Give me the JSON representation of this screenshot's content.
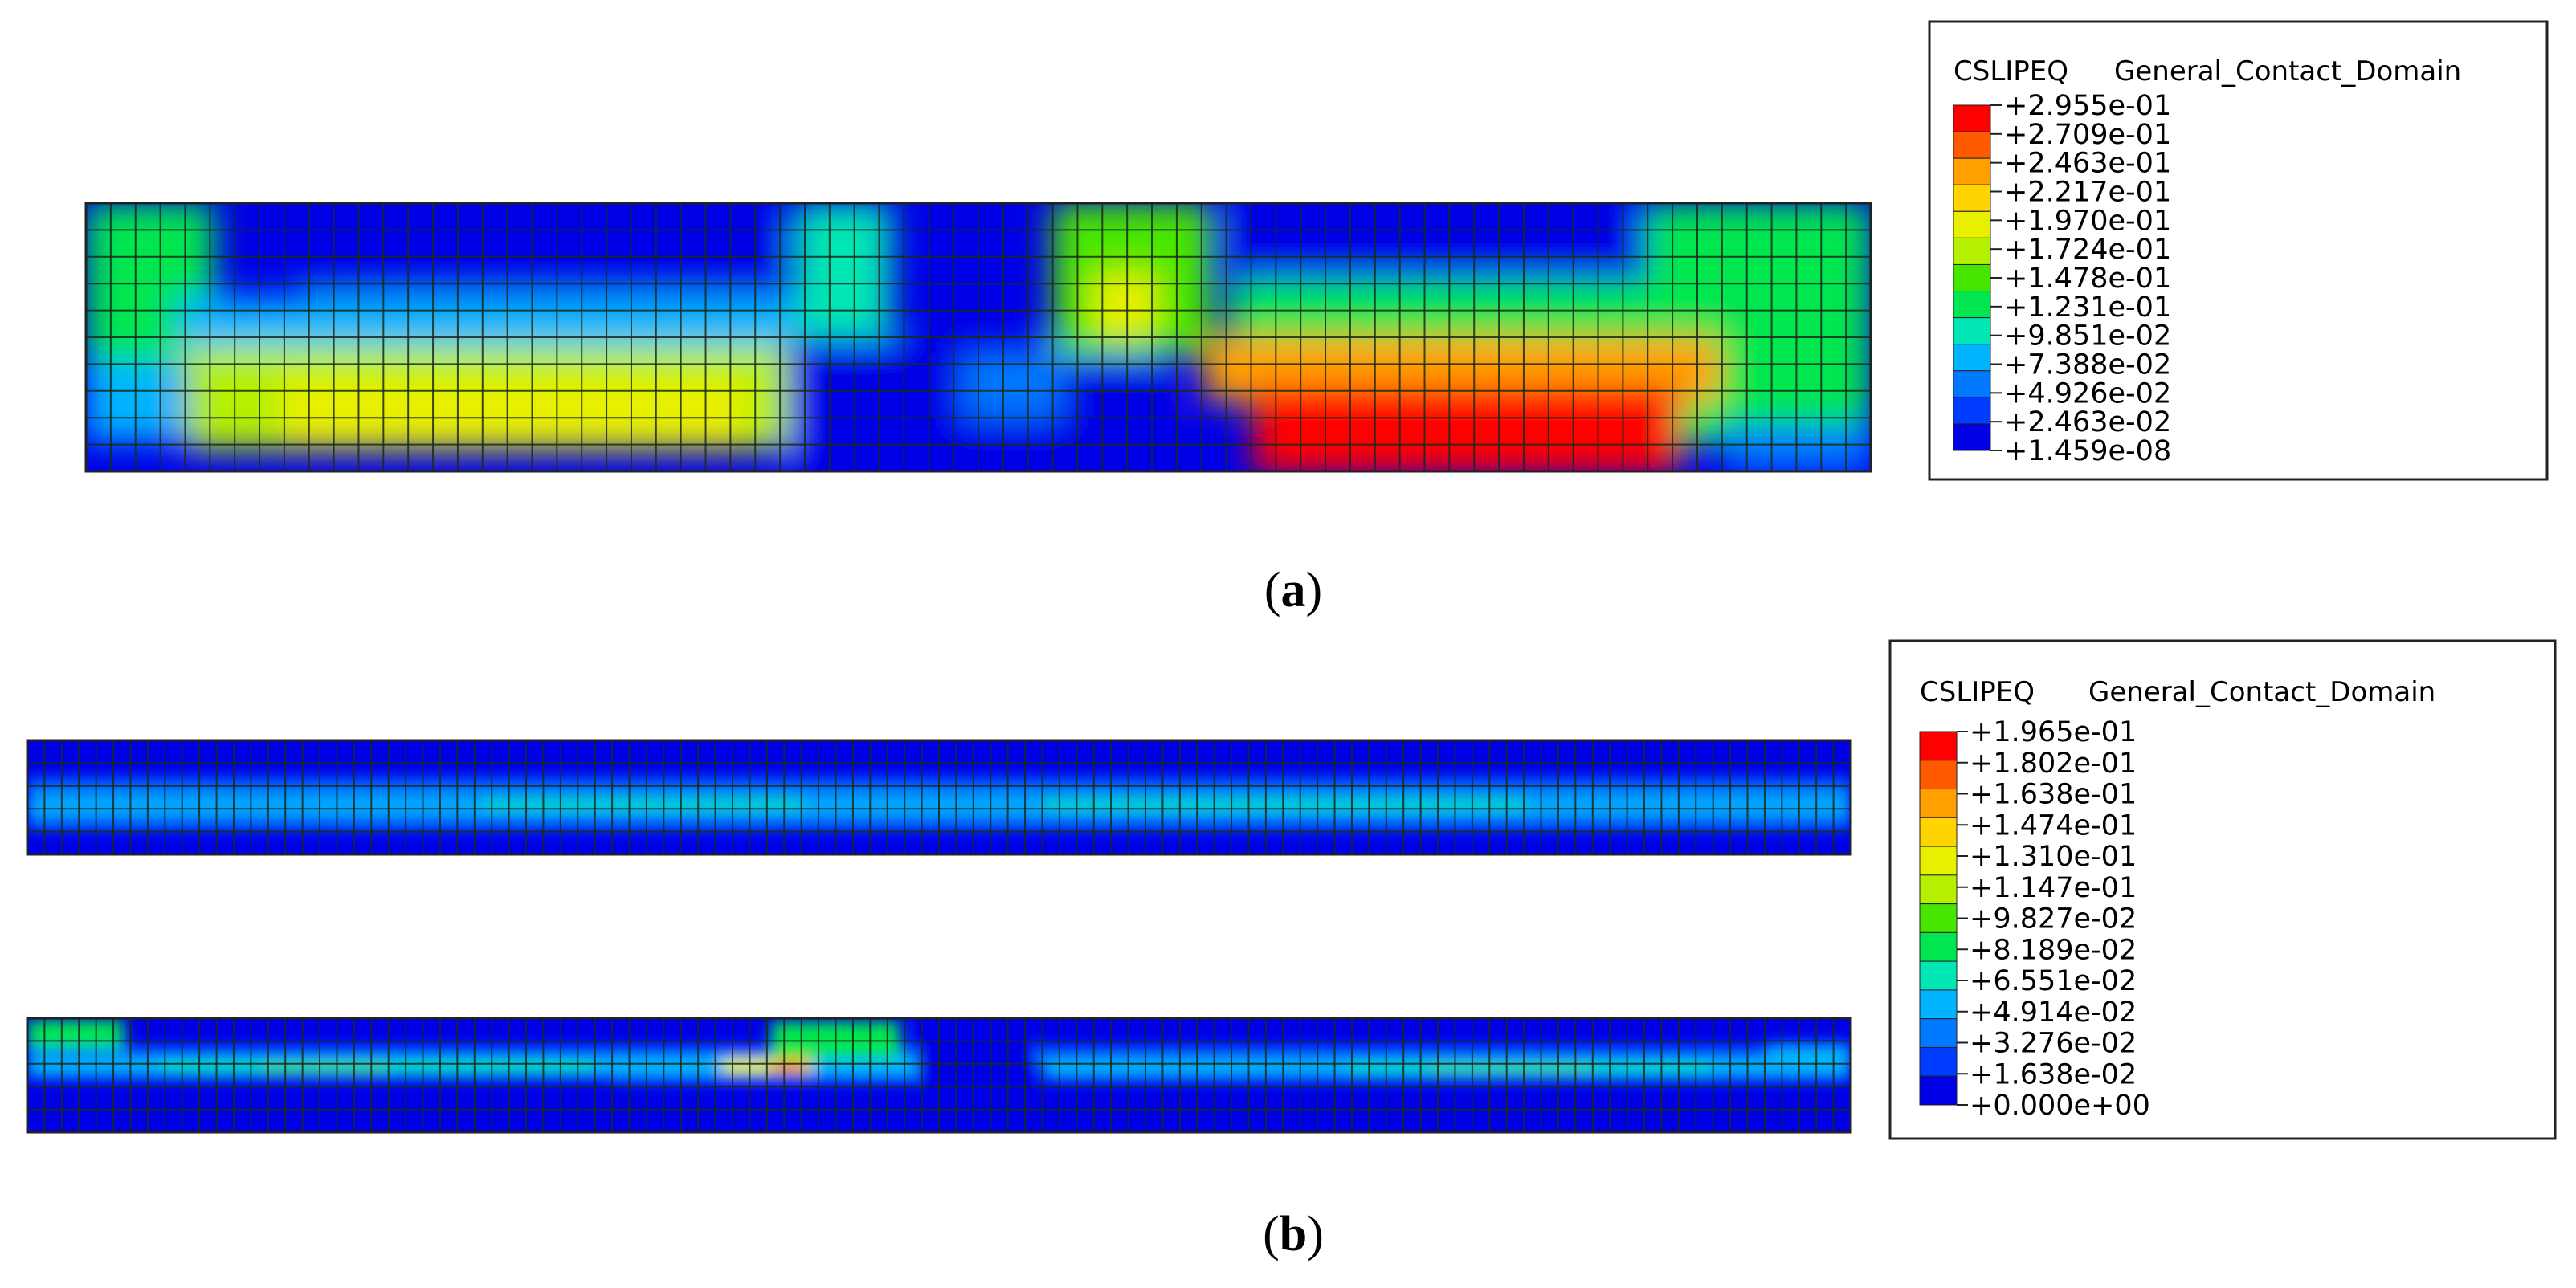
{
  "figure": {
    "panels": [
      {
        "id": "a",
        "caption_open": "(",
        "caption_letter": "a",
        "caption_close": ")",
        "legend": {
          "variable": "CSLIPEQ",
          "domain": "General_Contact_Domain",
          "values": [
            "+2.955e-01",
            "+2.709e-01",
            "+2.463e-01",
            "+2.217e-01",
            "+1.970e-01",
            "+1.724e-01",
            "+1.478e-01",
            "+1.231e-01",
            "+9.851e-02",
            "+7.388e-02",
            "+4.926e-02",
            "+2.463e-02",
            "+1.459e-08"
          ]
        }
      },
      {
        "id": "b",
        "caption_open": "(",
        "caption_letter": "b",
        "caption_close": ")",
        "legend": {
          "variable": "CSLIPEQ",
          "domain": "General_Contact_Domain",
          "values": [
            "+1.965e-01",
            "+1.802e-01",
            "+1.638e-01",
            "+1.474e-01",
            "+1.310e-01",
            "+1.147e-01",
            "+9.827e-02",
            "+8.189e-02",
            "+6.551e-02",
            "+4.914e-02",
            "+3.276e-02",
            "+1.638e-02",
            "+0.000e+00"
          ]
        }
      }
    ],
    "colormap": [
      "#ff0000",
      "#ff5a00",
      "#ffa000",
      "#ffd400",
      "#e8f000",
      "#b4f000",
      "#46e600",
      "#00e650",
      "#00e6b4",
      "#00b4ff",
      "#0078ff",
      "#003cff",
      "#0000e6"
    ]
  }
}
